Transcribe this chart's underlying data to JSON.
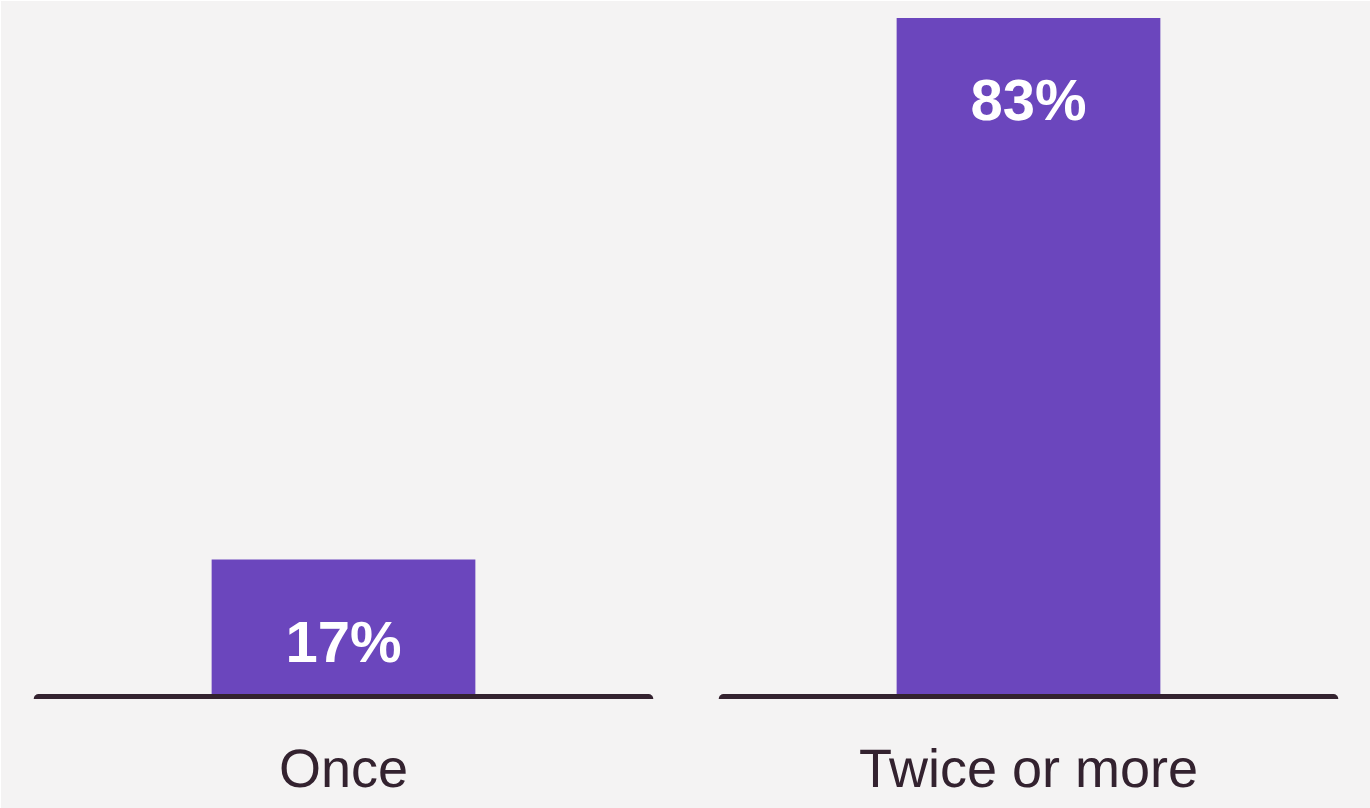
{
  "chart_data": {
    "type": "bar",
    "categories": [
      "Once",
      "Twice or more"
    ],
    "values": [
      17,
      83
    ],
    "value_labels": [
      "17%",
      "83%"
    ],
    "color": "#6b46bd",
    "grid": false
  }
}
